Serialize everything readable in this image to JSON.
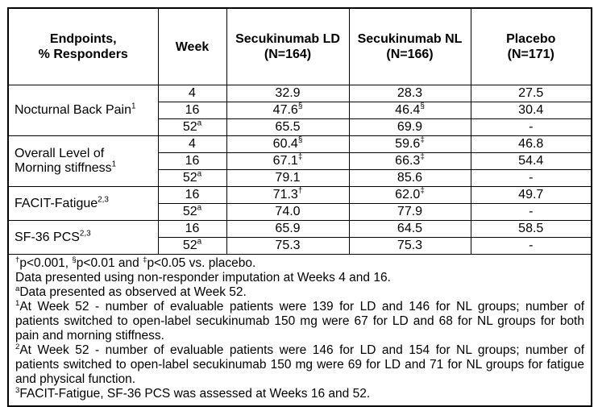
{
  "page": {
    "background_color": "#ffffff",
    "border_color": "#000000",
    "text_color": "#000000"
  },
  "table": {
    "headers": {
      "endpoints": {
        "line1": "Endpoints,",
        "line2": "% Responders"
      },
      "week": "Week",
      "ld": {
        "line1": "Secukinumab LD",
        "line2": "(N=164)"
      },
      "nl": {
        "line1": "Secukinumab NL",
        "line2": "(N=166)"
      },
      "placebo": {
        "line1": "Placebo",
        "line2": "(N=171)"
      }
    },
    "groups": [
      {
        "endpoint_lines": [
          "Nocturnal Back Pain"
        ],
        "endpoint_sup": "1",
        "rows": [
          {
            "week": "4",
            "week_sup": "",
            "ld": "32.9",
            "ld_sup": "",
            "nl": "28.3",
            "nl_sup": "",
            "placebo": "27.5"
          },
          {
            "week": "16",
            "week_sup": "",
            "ld": "47.6",
            "ld_sup": "§",
            "nl": "46.4",
            "nl_sup": "§",
            "placebo": "30.4"
          },
          {
            "week": "52",
            "week_sup": "a",
            "ld": "65.5",
            "ld_sup": "",
            "nl": "69.9",
            "nl_sup": "",
            "placebo": "-"
          }
        ]
      },
      {
        "endpoint_lines": [
          "Overall Level of",
          "Morning stiffness"
        ],
        "endpoint_sup": "1",
        "rows": [
          {
            "week": "4",
            "week_sup": "",
            "ld": "60.4",
            "ld_sup": "§",
            "nl": "59.6",
            "nl_sup": "‡",
            "placebo": "46.8"
          },
          {
            "week": "16",
            "week_sup": "",
            "ld": "67.1",
            "ld_sup": "‡",
            "nl": "66.3",
            "nl_sup": "‡",
            "placebo": "54.4"
          },
          {
            "week": "52",
            "week_sup": "a",
            "ld": "79.1",
            "ld_sup": "",
            "nl": "85.6",
            "nl_sup": "",
            "placebo": "-"
          }
        ]
      },
      {
        "endpoint_lines": [
          "FACIT-Fatigue"
        ],
        "endpoint_sup": "2,3",
        "rows": [
          {
            "week": "16",
            "week_sup": "",
            "ld": "71.3",
            "ld_sup": "†",
            "nl": "62.0",
            "nl_sup": "‡",
            "placebo": "49.7"
          },
          {
            "week": "52",
            "week_sup": "a",
            "ld": "74.0",
            "ld_sup": "",
            "nl": "77.9",
            "nl_sup": "",
            "placebo": "-"
          }
        ]
      },
      {
        "endpoint_lines": [
          "SF-36 PCS"
        ],
        "endpoint_sup": "2,3",
        "rows": [
          {
            "week": "16",
            "week_sup": "",
            "ld": "65.9",
            "ld_sup": "",
            "nl": "64.5",
            "nl_sup": "",
            "placebo": "58.5"
          },
          {
            "week": "52",
            "week_sup": "a",
            "ld": "75.3",
            "ld_sup": "",
            "nl": "75.3",
            "nl_sup": "",
            "placebo": "-"
          }
        ]
      }
    ]
  },
  "footnotes": [
    {
      "justify": false,
      "parts": [
        {
          "sup": "†"
        },
        {
          "text": "p<0.001, "
        },
        {
          "sup": "§"
        },
        {
          "text": "p<0.01 and "
        },
        {
          "sup": "‡"
        },
        {
          "text": "p<0.05 vs. placebo."
        }
      ]
    },
    {
      "justify": false,
      "parts": [
        {
          "text": "Data presented using non-responder imputation at Weeks 4 and 16."
        }
      ]
    },
    {
      "justify": false,
      "parts": [
        {
          "sup": "a"
        },
        {
          "text": "Data presented as observed at Week 52."
        }
      ]
    },
    {
      "justify": true,
      "parts": [
        {
          "sup": "1"
        },
        {
          "text": "At Week 52 - number of evaluable patients were 139 for LD and 146 for NL groups; number of patients switched to open-label secukinumab 150 mg were 67 for LD and 68 for NL groups for both pain and morning stiffness."
        }
      ]
    },
    {
      "justify": true,
      "parts": [
        {
          "sup": "2"
        },
        {
          "text": "At Week 52 - number of evaluable patients were 146 for LD and 154 for NL groups; number of patients switched to open-label secukinumab 150 mg were 69 for LD and 71 for NL groups for fatigue and physical function."
        }
      ]
    },
    {
      "justify": false,
      "parts": [
        {
          "sup": "3"
        },
        {
          "text": "FACIT-Fatigue, SF-36 PCS was assessed at Weeks 16 and 52."
        }
      ]
    }
  ]
}
